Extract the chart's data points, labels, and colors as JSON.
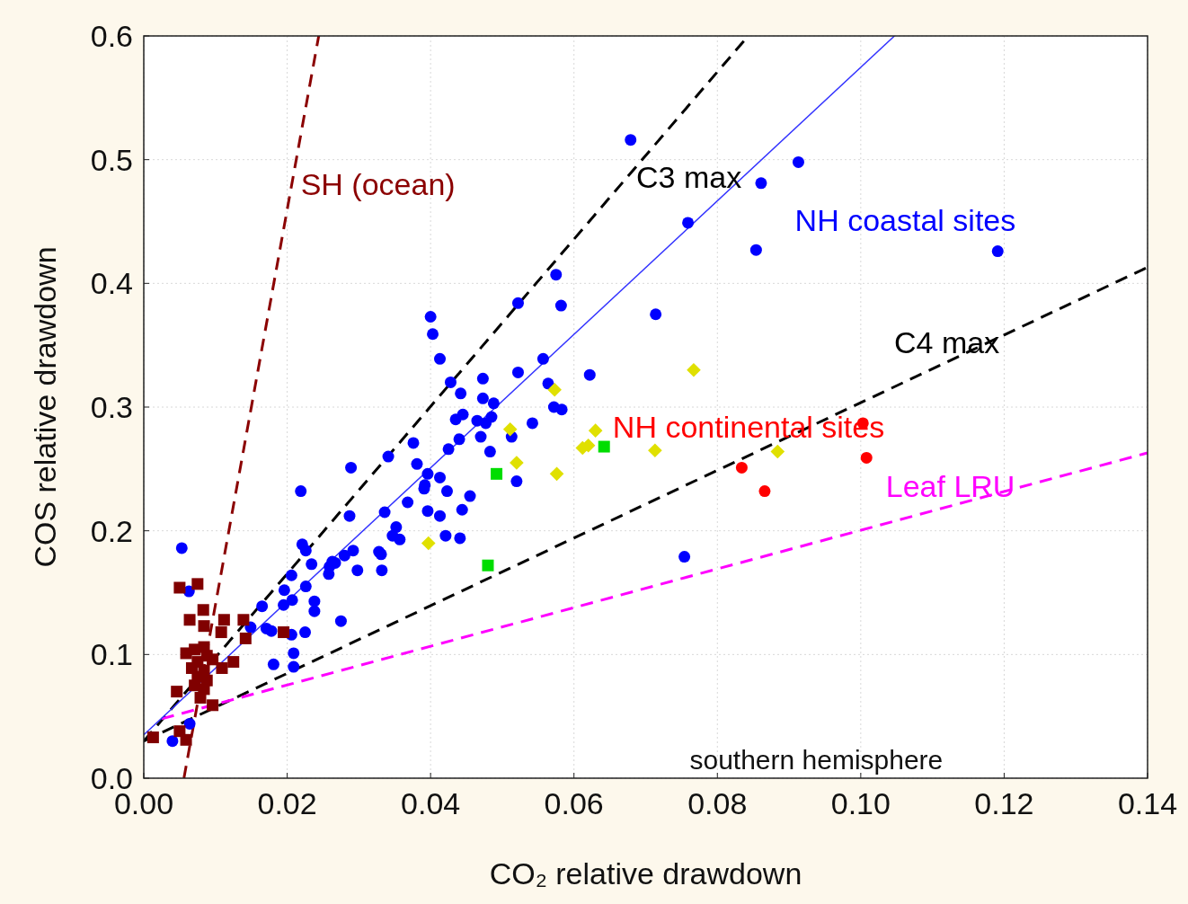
{
  "chart_data": {
    "type": "scatter",
    "xlabel": "CO₂ relative drawdown",
    "ylabel": "COS relative drawdown",
    "xlim": [
      0,
      0.14
    ],
    "ylim": [
      0,
      0.6
    ],
    "xticks": [
      {
        "value": 0,
        "label": "0.00"
      },
      {
        "value": 0.02,
        "label": "0.02"
      },
      {
        "value": 0.04,
        "label": "0.04"
      },
      {
        "value": 0.06,
        "label": "0.06"
      },
      {
        "value": 0.08,
        "label": "0.08"
      },
      {
        "value": 0.1,
        "label": "0.10"
      },
      {
        "value": 0.12,
        "label": "0.12"
      },
      {
        "value": 0.14,
        "label": "0.14"
      }
    ],
    "yticks": [
      {
        "value": 0,
        "label": "0.0"
      },
      {
        "value": 0.1,
        "label": "0.1"
      },
      {
        "value": 0.2,
        "label": "0.2"
      },
      {
        "value": 0.3,
        "label": "0.3"
      },
      {
        "value": 0.4,
        "label": "0.4"
      },
      {
        "value": 0.5,
        "label": "0.5"
      },
      {
        "value": 0.6,
        "label": "0.6"
      }
    ],
    "grid": true,
    "legend": false,
    "series": [
      {
        "type": "line",
        "name": "SH (ocean)",
        "color": "#8b0000",
        "line_style": "dashed",
        "marker": "none",
        "x": [
          0.0056,
          0.0244
        ],
        "values": [
          0,
          0.6
        ]
      },
      {
        "type": "line",
        "name": "C3 max",
        "color": "#000000",
        "line_style": "dashed",
        "marker": "none",
        "x": [
          0,
          0.0843
        ],
        "values": [
          0.03,
          0.6
        ]
      },
      {
        "type": "line",
        "name": "C4 max",
        "color": "#000000",
        "line_style": "dashed",
        "marker": "none",
        "x": [
          0,
          0.14
        ],
        "values": [
          0.03,
          0.413
        ]
      },
      {
        "type": "line",
        "name": "Leaf LRU",
        "color": "#ff00ff",
        "line_style": "dashed",
        "marker": "none",
        "x": [
          0.0025,
          0.14
        ],
        "values": [
          0.048,
          0.263
        ]
      },
      {
        "type": "line",
        "color": "#3333ff",
        "line_style": "solid",
        "marker": "none",
        "x": [
          0,
          0.1047
        ],
        "values": [
          0.035,
          0.6
        ]
      },
      {
        "name": "NH coastal sites",
        "color": "#0000ff",
        "marker": "circle",
        "x": [
          0.04,
          0.0403,
          0.0413,
          0.0522,
          0.0582,
          0.0557,
          0.0622,
          0.0428,
          0.0442,
          0.0473,
          0.0522,
          0.0564,
          0.0473,
          0.0488,
          0.0572,
          0.0583,
          0.0445,
          0.0435,
          0.0465,
          0.0477,
          0.0485,
          0.0542,
          0.047,
          0.0513,
          0.044,
          0.0376,
          0.0425,
          0.0483,
          0.0341,
          0.0289,
          0.0381,
          0.052,
          0.0396,
          0.0413,
          0.0392,
          0.0391,
          0.0423,
          0.0455,
          0.0219,
          0.0368,
          0.0336,
          0.0287,
          0.0396,
          0.0413,
          0.0444,
          0.0352,
          0.0347,
          0.0357,
          0.0421,
          0.0441,
          0.0221,
          0.0226,
          0.0292,
          0.0328,
          0.0331,
          0.0234,
          0.028,
          0.0263,
          0.0754,
          0.0679,
          0.0913,
          0.0861,
          0.0759,
          0.0854,
          0.0714,
          0.0575,
          0.1191,
          0.0053,
          0.0063,
          0.004,
          0.0064,
          0.0165,
          0.0149,
          0.0171,
          0.0178,
          0.0181,
          0.0206,
          0.0196,
          0.0195,
          0.0207,
          0.0206,
          0.0225,
          0.0209,
          0.0209,
          0.0226,
          0.0238,
          0.0238,
          0.0275,
          0.0259,
          0.0258,
          0.0267,
          0.0298,
          0.0332
        ],
        "values": [
          0.373,
          0.359,
          0.339,
          0.384,
          0.382,
          0.339,
          0.326,
          0.32,
          0.311,
          0.323,
          0.328,
          0.319,
          0.307,
          0.303,
          0.3,
          0.298,
          0.294,
          0.29,
          0.289,
          0.287,
          0.292,
          0.287,
          0.276,
          0.276,
          0.274,
          0.271,
          0.266,
          0.264,
          0.26,
          0.251,
          0.254,
          0.24,
          0.246,
          0.243,
          0.237,
          0.234,
          0.232,
          0.228,
          0.232,
          0.223,
          0.215,
          0.212,
          0.216,
          0.212,
          0.217,
          0.203,
          0.196,
          0.193,
          0.196,
          0.194,
          0.189,
          0.184,
          0.184,
          0.183,
          0.181,
          0.173,
          0.18,
          0.175,
          0.179,
          0.516,
          0.498,
          0.481,
          0.449,
          0.427,
          0.375,
          0.407,
          0.426,
          0.186,
          0.151,
          0.03,
          0.044,
          0.139,
          0.122,
          0.121,
          0.119,
          0.092,
          0.164,
          0.152,
          0.14,
          0.144,
          0.116,
          0.118,
          0.101,
          0.09,
          0.155,
          0.143,
          0.135,
          0.127,
          0.171,
          0.165,
          0.174,
          0.168,
          0.168
        ]
      },
      {
        "name": "NH continental sites",
        "color": "#ff0000",
        "marker": "circle",
        "x": [
          0.0834,
          0.0866,
          0.1003,
          0.1008
        ],
        "values": [
          0.251,
          0.232,
          0.287,
          0.259
        ]
      },
      {
        "color": "#e0e000",
        "marker": "diamond",
        "x": [
          0.0573,
          0.0511,
          0.052,
          0.0576,
          0.0397,
          0.0612,
          0.062,
          0.0767,
          0.0713,
          0.0884,
          0.063
        ],
        "values": [
          0.314,
          0.282,
          0.255,
          0.246,
          0.19,
          0.267,
          0.269,
          0.33,
          0.265,
          0.264,
          0.281
        ]
      },
      {
        "color": "#00dd00",
        "marker": "square",
        "x": [
          0.0492,
          0.048,
          0.0642
        ],
        "values": [
          0.246,
          0.172,
          0.268
        ]
      },
      {
        "color": "#800000",
        "marker": "square",
        "x": [
          0.005,
          0.0075,
          0.0083,
          0.0064,
          0.0084,
          0.0112,
          0.0139,
          0.0108,
          0.0142,
          0.0195,
          0.0059,
          0.0071,
          0.0084,
          0.0075,
          0.0088,
          0.0096,
          0.0067,
          0.0084,
          0.0109,
          0.0125,
          0.0075,
          0.0088,
          0.0071,
          0.0084,
          0.0079,
          0.0046,
          0.0096,
          0.005,
          0.0013,
          0.0059
        ],
        "values": [
          0.154,
          0.157,
          0.136,
          0.128,
          0.123,
          0.128,
          0.128,
          0.118,
          0.113,
          0.118,
          0.101,
          0.104,
          0.106,
          0.094,
          0.099,
          0.096,
          0.089,
          0.087,
          0.089,
          0.094,
          0.082,
          0.079,
          0.075,
          0.072,
          0.065,
          0.07,
          0.059,
          0.038,
          0.033,
          0.031
        ]
      }
    ],
    "annotations": [
      "southern hemisphere"
    ]
  }
}
